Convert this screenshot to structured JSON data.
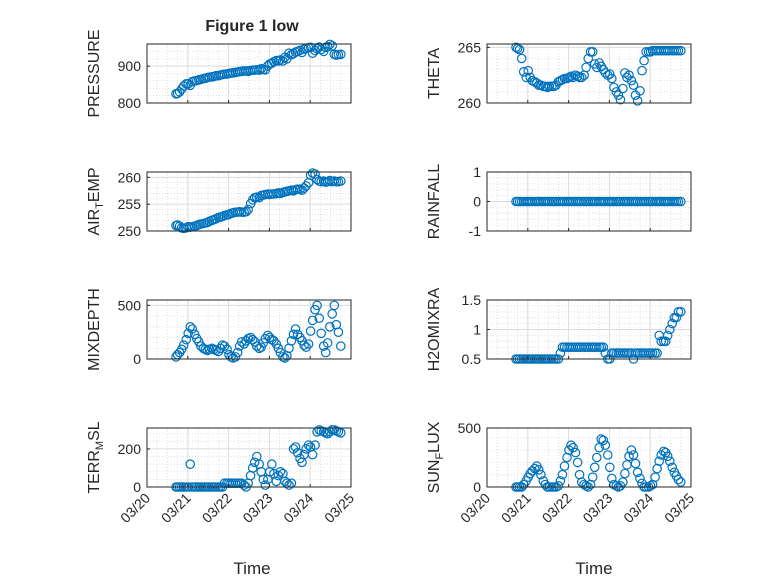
{
  "title": "Figure 1 low",
  "xlabel": "Time",
  "x_ticks": [
    "03/20",
    "03/21",
    "03/22",
    "03/23",
    "03/24",
    "03/25"
  ],
  "marker_color": "#0072BD",
  "chart_data": [
    {
      "type": "scatter",
      "ylabel": "PRESSURE",
      "ylim": [
        800,
        960
      ],
      "yticks": [
        "800",
        "900"
      ],
      "x": [
        20.71,
        20.75,
        20.8,
        20.85,
        20.9,
        20.96,
        21.01,
        21.06,
        21.11,
        21.17,
        21.22,
        21.27,
        21.32,
        21.38,
        21.43,
        21.48,
        21.53,
        21.59,
        21.64,
        21.69,
        21.75,
        21.8,
        21.85,
        21.9,
        21.96,
        22.01,
        22.06,
        22.11,
        22.17,
        22.22,
        22.27,
        22.32,
        22.38,
        22.43,
        22.48,
        22.54,
        22.59,
        22.64,
        22.69,
        22.75,
        22.8,
        22.85,
        22.9,
        22.96,
        23.01,
        23.06,
        23.11,
        23.17,
        23.22,
        23.27,
        23.33,
        23.38,
        23.43,
        23.48,
        23.54,
        23.59,
        23.64,
        23.69,
        23.75,
        23.8,
        23.85,
        23.9,
        23.96,
        24.01,
        24.06,
        24.12,
        24.17,
        24.22,
        24.27,
        24.33,
        24.38,
        24.43,
        24.48,
        24.54,
        24.59,
        24.64,
        24.69,
        24.75
      ],
      "y": [
        825,
        826,
        830,
        838,
        846,
        852,
        852,
        848,
        858,
        860,
        861,
        863,
        864,
        866,
        867,
        869,
        870,
        871,
        872,
        874,
        874,
        876,
        877,
        878,
        879,
        880,
        881,
        882,
        883,
        884,
        885,
        886,
        887,
        887,
        886,
        888,
        889,
        889,
        890,
        889,
        893,
        891,
        890,
        901,
        906,
        908,
        912,
        915,
        914,
        917,
        914,
        924,
        920,
        935,
        931,
        934,
        938,
        940,
        943,
        937,
        946,
        948,
        950,
        951,
        935,
        942,
        947,
        952,
        945,
        940,
        951,
        953,
        959,
        955,
        932,
        930,
        931,
        932
      ]
    },
    {
      "type": "scatter",
      "ylabel": "THETA",
      "ylim": [
        260,
        265.3
      ],
      "yticks": [
        "260",
        "265"
      ],
      "x": [
        20.71,
        20.75,
        20.8,
        20.85,
        20.9,
        20.96,
        21.01,
        21.06,
        21.11,
        21.17,
        21.22,
        21.27,
        21.32,
        21.38,
        21.43,
        21.48,
        21.53,
        21.59,
        21.64,
        21.69,
        21.75,
        21.8,
        21.85,
        21.9,
        21.96,
        22.01,
        22.06,
        22.11,
        22.17,
        22.22,
        22.27,
        22.32,
        22.38,
        22.43,
        22.48,
        22.54,
        22.59,
        22.64,
        22.69,
        22.75,
        22.8,
        22.85,
        22.9,
        22.96,
        23.01,
        23.06,
        23.11,
        23.17,
        23.22,
        23.27,
        23.33,
        23.38,
        23.43,
        23.48,
        23.54,
        23.59,
        23.64,
        23.69,
        23.75,
        23.8,
        23.85,
        23.9,
        23.96,
        24.01,
        24.06,
        24.12,
        24.17,
        24.22,
        24.27,
        24.33,
        24.38,
        24.43,
        24.48,
        24.54,
        24.59,
        24.64,
        24.69,
        24.75
      ],
      "y": [
        265.0,
        264.9,
        264.8,
        264.0,
        262.8,
        262.3,
        262.9,
        262.3,
        262.0,
        261.9,
        261.8,
        261.6,
        261.6,
        261.5,
        261.5,
        261.4,
        261.5,
        261.5,
        261.5,
        261.6,
        261.9,
        262.0,
        262.1,
        262.2,
        262.2,
        262.3,
        262.4,
        262.3,
        262.5,
        262.4,
        262.3,
        262.3,
        262.5,
        263.2,
        264.0,
        264.6,
        264.6,
        263.5,
        263.2,
        263.6,
        263.3,
        263.0,
        262.7,
        262.5,
        262.6,
        262.2,
        261.4,
        261.0,
        260.7,
        260.3,
        261.3,
        262.7,
        262.3,
        262.5,
        262.0,
        261.6,
        260.7,
        260.2,
        261.1,
        262.9,
        263.8,
        264.6,
        264.6,
        264.6,
        264.7,
        264.7,
        264.7,
        264.7,
        264.7,
        264.7,
        264.7,
        264.7,
        264.7,
        264.7,
        264.7,
        264.7,
        264.7,
        264.7
      ]
    },
    {
      "type": "scatter",
      "ylabel": "AIR_TEMP",
      "ylim": [
        250,
        261
      ],
      "yticks": [
        "250",
        "255",
        "260"
      ],
      "x": [
        20.71,
        20.75,
        20.8,
        20.85,
        20.9,
        20.96,
        21.01,
        21.06,
        21.11,
        21.17,
        21.22,
        21.27,
        21.32,
        21.38,
        21.43,
        21.48,
        21.53,
        21.59,
        21.64,
        21.69,
        21.75,
        21.8,
        21.85,
        21.9,
        21.96,
        22.01,
        22.06,
        22.11,
        22.17,
        22.22,
        22.27,
        22.32,
        22.38,
        22.43,
        22.48,
        22.54,
        22.59,
        22.64,
        22.69,
        22.75,
        22.8,
        22.85,
        22.9,
        22.96,
        23.01,
        23.06,
        23.11,
        23.17,
        23.22,
        23.27,
        23.33,
        23.38,
        23.43,
        23.48,
        23.54,
        23.59,
        23.64,
        23.69,
        23.75,
        23.8,
        23.85,
        23.9,
        23.96,
        24.01,
        24.06,
        24.12,
        24.17,
        24.22,
        24.27,
        24.33,
        24.38,
        24.43,
        24.48,
        24.54,
        24.59,
        24.64,
        24.69,
        24.75
      ],
      "y": [
        251.0,
        251.1,
        250.9,
        250.6,
        250.5,
        250.6,
        250.8,
        250.7,
        250.8,
        250.9,
        251.0,
        251.2,
        251.3,
        251.4,
        251.5,
        251.6,
        251.8,
        252.0,
        252.1,
        252.3,
        252.5,
        252.6,
        252.7,
        252.9,
        253.0,
        253.1,
        253.3,
        253.4,
        253.5,
        253.5,
        253.6,
        253.5,
        253.5,
        253.6,
        254.0,
        255.1,
        255.8,
        256.2,
        256.3,
        256.2,
        256.6,
        256.7,
        256.8,
        256.9,
        256.8,
        256.9,
        256.9,
        257.0,
        257.1,
        257.0,
        257.2,
        257.3,
        257.4,
        257.5,
        257.6,
        257.5,
        257.7,
        257.8,
        257.8,
        257.6,
        258.0,
        258.4,
        259.0,
        260.4,
        260.8,
        260.6,
        259.6,
        259.3,
        259.2,
        259.3,
        259.1,
        259.2,
        259.4,
        259.2,
        259.3,
        259.2,
        259.2,
        259.3
      ]
    },
    {
      "type": "scatter",
      "ylabel": "RAINFALL",
      "ylim": [
        -1,
        1
      ],
      "yticks": [
        "-1",
        "0",
        "1"
      ],
      "x": [
        20.71,
        20.75,
        20.8,
        20.85,
        20.9,
        20.96,
        21.01,
        21.06,
        21.11,
        21.17,
        21.22,
        21.27,
        21.32,
        21.38,
        21.43,
        21.48,
        21.53,
        21.59,
        21.64,
        21.69,
        21.75,
        21.8,
        21.85,
        21.9,
        21.96,
        22.01,
        22.06,
        22.11,
        22.17,
        22.22,
        22.27,
        22.32,
        22.38,
        22.43,
        22.48,
        22.54,
        22.59,
        22.64,
        22.69,
        22.75,
        22.8,
        22.85,
        22.9,
        22.96,
        23.01,
        23.06,
        23.11,
        23.17,
        23.22,
        23.27,
        23.33,
        23.38,
        23.43,
        23.48,
        23.54,
        23.59,
        23.64,
        23.69,
        23.75,
        23.8,
        23.85,
        23.9,
        23.96,
        24.01,
        24.06,
        24.12,
        24.17,
        24.22,
        24.27,
        24.33,
        24.38,
        24.43,
        24.48,
        24.54,
        24.59,
        24.64,
        24.69,
        24.75
      ],
      "y": [
        0,
        0,
        0,
        0,
        0,
        0,
        0,
        0,
        0,
        0,
        0,
        0,
        0,
        0,
        0,
        0,
        0,
        0,
        0,
        0,
        0,
        0,
        0,
        0,
        0,
        0,
        0,
        0,
        0,
        0,
        0,
        0,
        0,
        0,
        0,
        0,
        0,
        0,
        0,
        0,
        0,
        0,
        0,
        0,
        0,
        0,
        0,
        0,
        0,
        0,
        0,
        0,
        0,
        0,
        0,
        0,
        0,
        0,
        0,
        0,
        0,
        0,
        0,
        0,
        0,
        0,
        0,
        0,
        0,
        0,
        0,
        0,
        0,
        0,
        0,
        0,
        0,
        0
      ]
    },
    {
      "type": "scatter",
      "ylabel": "MIXDEPTH",
      "ylim": [
        0,
        550
      ],
      "yticks": [
        "0",
        "500"
      ],
      "x": [
        20.71,
        20.75,
        20.8,
        20.85,
        20.9,
        20.96,
        21.01,
        21.06,
        21.11,
        21.17,
        21.22,
        21.27,
        21.32,
        21.38,
        21.43,
        21.48,
        21.53,
        21.59,
        21.64,
        21.69,
        21.75,
        21.8,
        21.85,
        21.9,
        21.96,
        22.01,
        22.06,
        22.11,
        22.17,
        22.22,
        22.27,
        22.32,
        22.38,
        22.43,
        22.48,
        22.54,
        22.59,
        22.64,
        22.69,
        22.75,
        22.8,
        22.85,
        22.9,
        22.96,
        23.01,
        23.06,
        23.11,
        23.17,
        23.22,
        23.27,
        23.33,
        23.38,
        23.43,
        23.48,
        23.54,
        23.59,
        23.64,
        23.69,
        23.75,
        23.8,
        23.85,
        23.9,
        23.96,
        24.01,
        24.06,
        24.12,
        24.17,
        24.22,
        24.27,
        24.33,
        24.38,
        24.43,
        24.48,
        24.54,
        24.59,
        24.64,
        24.69,
        24.75
      ],
      "y": [
        20,
        40,
        60,
        90,
        130,
        180,
        240,
        300,
        280,
        230,
        190,
        160,
        120,
        100,
        90,
        80,
        90,
        100,
        90,
        80,
        70,
        100,
        130,
        120,
        90,
        40,
        20,
        10,
        20,
        60,
        120,
        160,
        140,
        170,
        190,
        200,
        180,
        160,
        120,
        100,
        110,
        150,
        190,
        220,
        200,
        180,
        170,
        140,
        100,
        60,
        20,
        10,
        30,
        100,
        170,
        230,
        280,
        230,
        200,
        170,
        130,
        110,
        140,
        260,
        360,
        460,
        500,
        380,
        240,
        120,
        60,
        150,
        300,
        420,
        500,
        320,
        250,
        120
      ]
    },
    {
      "type": "scatter",
      "ylabel": "H2OMIXRA",
      "ylim": [
        0.5,
        1.5
      ],
      "yticks": [
        "0.5",
        "1",
        "1.5"
      ],
      "x": [
        20.71,
        20.75,
        20.8,
        20.85,
        20.9,
        20.96,
        21.01,
        21.06,
        21.11,
        21.17,
        21.22,
        21.27,
        21.32,
        21.38,
        21.43,
        21.48,
        21.53,
        21.59,
        21.64,
        21.69,
        21.75,
        21.8,
        21.85,
        21.9,
        21.96,
        22.01,
        22.06,
        22.11,
        22.17,
        22.22,
        22.27,
        22.32,
        22.38,
        22.43,
        22.48,
        22.54,
        22.59,
        22.64,
        22.69,
        22.75,
        22.8,
        22.85,
        22.9,
        22.96,
        23.01,
        23.06,
        23.11,
        23.17,
        23.22,
        23.27,
        23.33,
        23.38,
        23.43,
        23.48,
        23.54,
        23.59,
        23.64,
        23.69,
        23.75,
        23.8,
        23.85,
        23.9,
        23.96,
        24.01,
        24.06,
        24.12,
        24.17,
        24.22,
        24.27,
        24.33,
        24.38,
        24.43,
        24.48,
        24.54,
        24.59,
        24.64,
        24.69,
        24.75
      ],
      "y": [
        0.5,
        0.5,
        0.5,
        0.5,
        0.5,
        0.5,
        0.5,
        0.5,
        0.5,
        0.5,
        0.5,
        0.5,
        0.5,
        0.5,
        0.5,
        0.5,
        0.5,
        0.5,
        0.5,
        0.5,
        0.5,
        0.6,
        0.7,
        0.7,
        0.7,
        0.7,
        0.7,
        0.7,
        0.7,
        0.7,
        0.7,
        0.7,
        0.7,
        0.7,
        0.7,
        0.7,
        0.7,
        0.7,
        0.7,
        0.7,
        0.7,
        0.7,
        0.6,
        0.5,
        0.5,
        0.6,
        0.6,
        0.6,
        0.6,
        0.6,
        0.6,
        0.6,
        0.6,
        0.6,
        0.6,
        0.5,
        0.6,
        0.6,
        0.6,
        0.6,
        0.6,
        0.6,
        0.6,
        0.6,
        0.6,
        0.6,
        0.6,
        0.9,
        0.8,
        0.8,
        0.8,
        0.9,
        1.0,
        1.1,
        1.2,
        1.2,
        1.3,
        1.3
      ]
    },
    {
      "type": "scatter",
      "ylabel": "TERR_MSL",
      "ylim": [
        0,
        310
      ],
      "yticks": [
        "0",
        "200"
      ],
      "x": [
        20.71,
        20.75,
        20.8,
        20.85,
        20.9,
        20.96,
        21.01,
        21.06,
        21.11,
        21.17,
        21.22,
        21.27,
        21.32,
        21.38,
        21.43,
        21.48,
        21.53,
        21.59,
        21.64,
        21.69,
        21.75,
        21.8,
        21.85,
        21.9,
        21.96,
        22.01,
        22.06,
        22.11,
        22.17,
        22.22,
        22.27,
        22.32,
        22.38,
        22.43,
        22.48,
        22.54,
        22.59,
        22.64,
        22.69,
        22.75,
        22.8,
        22.85,
        22.9,
        22.96,
        23.01,
        23.06,
        23.11,
        23.17,
        23.22,
        23.27,
        23.33,
        23.38,
        23.43,
        23.48,
        23.54,
        23.59,
        23.64,
        23.69,
        23.75,
        23.8,
        23.85,
        23.9,
        23.96,
        24.01,
        24.06,
        24.12,
        24.17,
        24.22,
        24.27,
        24.33,
        24.38,
        24.43,
        24.48,
        24.54,
        24.59,
        24.64,
        24.69,
        24.75
      ],
      "y": [
        0,
        0,
        0,
        0,
        0,
        0,
        0,
        120,
        0,
        0,
        0,
        0,
        0,
        0,
        0,
        0,
        0,
        0,
        0,
        0,
        0,
        0,
        0,
        20,
        20,
        20,
        20,
        20,
        20,
        20,
        20,
        20,
        10,
        0,
        20,
        60,
        100,
        130,
        160,
        120,
        80,
        40,
        10,
        40,
        80,
        120,
        70,
        30,
        60,
        80,
        70,
        30,
        20,
        10,
        20,
        200,
        210,
        180,
        150,
        130,
        170,
        200,
        220,
        210,
        170,
        220,
        290,
        300,
        295,
        290,
        285,
        280,
        290,
        300,
        300,
        295,
        290,
        285
      ]
    },
    {
      "type": "scatter",
      "ylabel": "SUN_FLUX",
      "ylim": [
        0,
        480
      ],
      "yticks": [
        "0",
        "500"
      ],
      "x": [
        20.71,
        20.75,
        20.8,
        20.85,
        20.9,
        20.96,
        21.01,
        21.06,
        21.11,
        21.17,
        21.22,
        21.27,
        21.32,
        21.38,
        21.43,
        21.48,
        21.53,
        21.59,
        21.64,
        21.69,
        21.75,
        21.8,
        21.85,
        21.9,
        21.96,
        22.01,
        22.06,
        22.11,
        22.17,
        22.22,
        22.27,
        22.32,
        22.38,
        22.43,
        22.48,
        22.54,
        22.59,
        22.64,
        22.69,
        22.75,
        22.8,
        22.85,
        22.9,
        22.96,
        23.01,
        23.06,
        23.11,
        23.17,
        23.22,
        23.27,
        23.33,
        23.38,
        23.43,
        23.48,
        23.54,
        23.59,
        23.64,
        23.69,
        23.75,
        23.8,
        23.85,
        23.9,
        23.96,
        24.01,
        24.06,
        24.12,
        24.17,
        24.22,
        24.27,
        24.33,
        24.38,
        24.43,
        24.48,
        24.54,
        24.59,
        24.64,
        24.69,
        24.75
      ],
      "y": [
        0,
        0,
        0,
        0,
        20,
        50,
        80,
        110,
        130,
        150,
        170,
        140,
        100,
        50,
        20,
        0,
        0,
        0,
        0,
        0,
        10,
        50,
        100,
        170,
        240,
        300,
        340,
        320,
        280,
        200,
        100,
        40,
        20,
        10,
        0,
        20,
        80,
        160,
        240,
        320,
        390,
        380,
        340,
        260,
        160,
        70,
        20,
        10,
        0,
        10,
        40,
        110,
        180,
        250,
        300,
        260,
        190,
        120,
        70,
        30,
        0,
        0,
        0,
        10,
        20,
        80,
        150,
        210,
        260,
        290,
        280,
        250,
        210,
        160,
        120,
        90,
        60,
        40
      ]
    }
  ]
}
